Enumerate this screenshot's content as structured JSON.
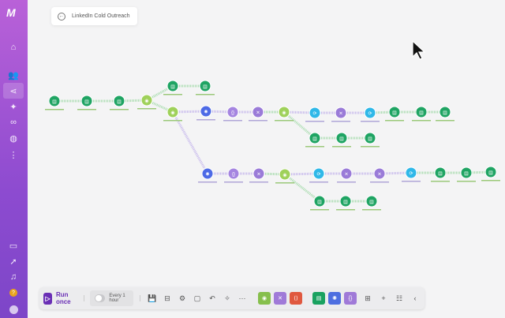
{
  "sidebar": {
    "logo": "M",
    "items": [
      {
        "name": "home",
        "icon": "⌂"
      },
      {
        "name": "team",
        "icon": "👥"
      },
      {
        "name": "scenarios",
        "icon": "⋖",
        "active": true
      },
      {
        "name": "templates",
        "icon": "✦"
      },
      {
        "name": "connections",
        "icon": "∞"
      },
      {
        "name": "webhooks",
        "icon": "◍"
      },
      {
        "name": "more",
        "icon": "⋮"
      }
    ],
    "bottom": [
      {
        "name": "docs",
        "icon": "▭"
      },
      {
        "name": "whats-new",
        "icon": "➚"
      },
      {
        "name": "notifications",
        "icon": "♫"
      },
      {
        "name": "help",
        "icon": "?"
      },
      {
        "name": "profile",
        "icon": "●"
      }
    ]
  },
  "header": {
    "title": "LinkedIn Cold Outreach",
    "back_icon": "←"
  },
  "toolbar": {
    "run_label": "Run once",
    "schedule_label": "Every 1 hour",
    "schedule_on": false,
    "tools": [
      "💾",
      "⊟",
      "⚙",
      "▢",
      "↶",
      "✧",
      "···"
    ],
    "modules": [
      {
        "icon": "◉",
        "color": "#86bf4c"
      },
      {
        "icon": "✕",
        "color": "#a07ad8"
      },
      {
        "icon": "⟨⟩",
        "color": "#e0583f"
      }
    ],
    "modules2": [
      {
        "icon": "▤",
        "color": "#1aa260"
      },
      {
        "icon": "✺",
        "color": "#4e6fe0"
      },
      {
        "icon": "{}",
        "color": "#a07ad8"
      }
    ],
    "extra": [
      "⊞",
      "+",
      "☷",
      "‹"
    ]
  },
  "colors": {
    "sheets": "#1fa463",
    "router": "#9fd15a",
    "openai": "#4d6ae6",
    "json": "#a585e0",
    "tools": "#9a7bd8",
    "http": "#2fb8e8"
  },
  "nodes": [
    {
      "id": 1,
      "type": "sheets"
    },
    {
      "id": 2,
      "type": "sheets"
    },
    {
      "id": 3,
      "type": "sheets"
    },
    {
      "id": 4,
      "type": "router"
    },
    {
      "id": 5,
      "type": "sheets"
    },
    {
      "id": 6,
      "type": "sheets"
    },
    {
      "id": 7,
      "type": "router"
    },
    {
      "id": 8,
      "type": "openai"
    },
    {
      "id": 9,
      "type": "json"
    },
    {
      "id": 10,
      "type": "tools"
    },
    {
      "id": 11,
      "type": "router"
    },
    {
      "id": 12,
      "type": "http"
    },
    {
      "id": 13,
      "type": "tools"
    },
    {
      "id": 14,
      "type": "http"
    },
    {
      "id": 15,
      "type": "sheets"
    },
    {
      "id": 16,
      "type": "sheets"
    },
    {
      "id": 17,
      "type": "sheets"
    },
    {
      "id": 18,
      "type": "sheets"
    },
    {
      "id": 19,
      "type": "sheets"
    },
    {
      "id": 20,
      "type": "sheets"
    },
    {
      "id": 21,
      "type": "openai"
    },
    {
      "id": 22,
      "type": "json"
    },
    {
      "id": 23,
      "type": "tools"
    },
    {
      "id": 24,
      "type": "router"
    },
    {
      "id": 25,
      "type": "http"
    },
    {
      "id": 26,
      "type": "tools"
    },
    {
      "id": 27,
      "type": "tools"
    },
    {
      "id": 28,
      "type": "http"
    },
    {
      "id": 29,
      "type": "sheets"
    },
    {
      "id": 30,
      "type": "sheets"
    },
    {
      "id": 31,
      "type": "sheets"
    },
    {
      "id": 32,
      "type": "sheets"
    },
    {
      "id": 33,
      "type": "sheets"
    },
    {
      "id": 34,
      "type": "sheets"
    }
  ]
}
